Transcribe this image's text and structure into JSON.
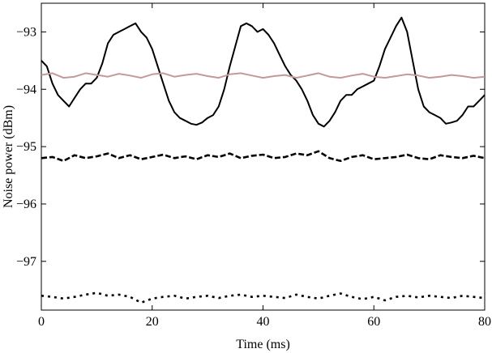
{
  "chart_data": {
    "type": "line",
    "title": "",
    "xlabel": "Time (ms)",
    "ylabel": "Noise power (dBm)",
    "xlim": [
      0,
      80
    ],
    "ylim": [
      -97.85,
      -92.5
    ],
    "x_ticks": [
      0,
      20,
      40,
      60,
      80
    ],
    "x_tick_labels": [
      "0",
      "20",
      "40",
      "60",
      "80"
    ],
    "y_ticks": [
      -97,
      -96,
      -95,
      -94,
      -93
    ],
    "y_tick_labels": [
      "−97",
      "−96",
      "−95",
      "−94",
      "−93"
    ],
    "grid": false,
    "legend": "none",
    "series": [
      {
        "style": "solid",
        "color": "#000000",
        "x": [
          0,
          1,
          2,
          3,
          4,
          5,
          6,
          7,
          8,
          9,
          10,
          11,
          12,
          13,
          14,
          15,
          16,
          17,
          18,
          19,
          20,
          21,
          22,
          23,
          24,
          25,
          26,
          27,
          28,
          29,
          30,
          31,
          32,
          33,
          34,
          35,
          36,
          37,
          38,
          39,
          40,
          41,
          42,
          43,
          44,
          45,
          46,
          47,
          48,
          49,
          50,
          51,
          52,
          53,
          54,
          55,
          56,
          57,
          58,
          59,
          60,
          61,
          62,
          63,
          64,
          65,
          66,
          67,
          68,
          69,
          70,
          71,
          72,
          73,
          74,
          75,
          76,
          77,
          78,
          79,
          80
        ],
        "y": [
          -93.5,
          -93.6,
          -93.9,
          -94.1,
          -94.2,
          -94.3,
          -94.15,
          -94.0,
          -93.9,
          -93.9,
          -93.8,
          -93.55,
          -93.2,
          -93.05,
          -93.0,
          -92.95,
          -92.9,
          -92.85,
          -93.0,
          -93.1,
          -93.3,
          -93.6,
          -93.9,
          -94.2,
          -94.4,
          -94.5,
          -94.55,
          -94.6,
          -94.62,
          -94.58,
          -94.5,
          -94.45,
          -94.3,
          -94.0,
          -93.6,
          -93.25,
          -92.9,
          -92.85,
          -92.9,
          -93.0,
          -92.95,
          -93.05,
          -93.2,
          -93.4,
          -93.6,
          -93.75,
          -93.85,
          -94.0,
          -94.2,
          -94.45,
          -94.6,
          -94.65,
          -94.55,
          -94.4,
          -94.2,
          -94.1,
          -94.1,
          -94.0,
          -93.95,
          -93.9,
          -93.85,
          -93.6,
          -93.3,
          -93.1,
          -92.9,
          -92.75,
          -93.0,
          -93.5,
          -94.0,
          -94.3,
          -94.4,
          -94.45,
          -94.5,
          -94.6,
          -94.58,
          -94.55,
          -94.45,
          -94.3,
          -94.3,
          -94.2,
          -94.1
        ]
      },
      {
        "style": "solid",
        "color": "#c49a98",
        "x": [
          0,
          2,
          4,
          6,
          8,
          10,
          12,
          14,
          16,
          18,
          20,
          22,
          24,
          26,
          28,
          30,
          32,
          34,
          36,
          38,
          40,
          42,
          44,
          46,
          48,
          50,
          52,
          54,
          56,
          58,
          60,
          62,
          64,
          66,
          68,
          70,
          72,
          74,
          76,
          78,
          80
        ],
        "y": [
          -93.75,
          -93.72,
          -93.8,
          -93.78,
          -93.72,
          -93.75,
          -93.78,
          -93.73,
          -93.76,
          -93.8,
          -93.74,
          -93.72,
          -93.78,
          -93.75,
          -93.73,
          -93.77,
          -93.8,
          -93.74,
          -93.72,
          -93.76,
          -93.8,
          -93.77,
          -93.75,
          -93.8,
          -93.76,
          -93.72,
          -93.78,
          -93.8,
          -93.76,
          -93.73,
          -93.78,
          -93.8,
          -93.77,
          -93.74,
          -93.76,
          -93.8,
          -93.78,
          -93.75,
          -93.77,
          -93.8,
          -93.78
        ]
      },
      {
        "style": "dashed",
        "color": "#000000",
        "x": [
          0,
          2,
          4,
          6,
          8,
          10,
          12,
          14,
          16,
          18,
          20,
          22,
          24,
          26,
          28,
          30,
          32,
          34,
          36,
          38,
          40,
          42,
          44,
          46,
          48,
          50,
          52,
          54,
          56,
          58,
          60,
          62,
          64,
          66,
          68,
          70,
          72,
          74,
          76,
          78,
          80
        ],
        "y": [
          -95.2,
          -95.18,
          -95.25,
          -95.15,
          -95.2,
          -95.17,
          -95.12,
          -95.2,
          -95.15,
          -95.22,
          -95.18,
          -95.14,
          -95.2,
          -95.17,
          -95.22,
          -95.15,
          -95.18,
          -95.12,
          -95.2,
          -95.16,
          -95.14,
          -95.2,
          -95.18,
          -95.12,
          -95.15,
          -95.08,
          -95.2,
          -95.25,
          -95.18,
          -95.15,
          -95.22,
          -95.2,
          -95.18,
          -95.14,
          -95.2,
          -95.22,
          -95.15,
          -95.18,
          -95.2,
          -95.16,
          -95.2
        ]
      },
      {
        "style": "dotted",
        "color": "#000000",
        "x": [
          0,
          2,
          4,
          6,
          8,
          10,
          12,
          14,
          16,
          18,
          20,
          22,
          24,
          26,
          28,
          30,
          32,
          34,
          36,
          38,
          40,
          42,
          44,
          46,
          48,
          50,
          52,
          54,
          56,
          58,
          60,
          62,
          64,
          66,
          68,
          70,
          72,
          74,
          76,
          78,
          80
        ],
        "y": [
          -97.6,
          -97.62,
          -97.65,
          -97.62,
          -97.58,
          -97.55,
          -97.6,
          -97.58,
          -97.62,
          -97.72,
          -97.65,
          -97.62,
          -97.6,
          -97.65,
          -97.62,
          -97.6,
          -97.64,
          -97.6,
          -97.58,
          -97.62,
          -97.6,
          -97.62,
          -97.64,
          -97.58,
          -97.62,
          -97.65,
          -97.6,
          -97.56,
          -97.62,
          -97.66,
          -97.62,
          -97.68,
          -97.62,
          -97.6,
          -97.63,
          -97.6,
          -97.62,
          -97.64,
          -97.6,
          -97.62,
          -97.64
        ]
      }
    ]
  }
}
